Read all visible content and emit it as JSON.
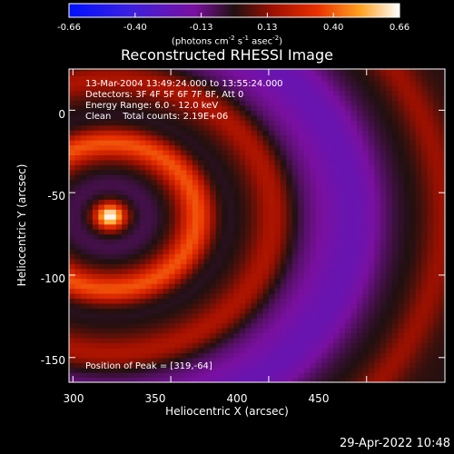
{
  "chart_data": {
    "type": "heatmap",
    "title": "Reconstructed RHESSI Image",
    "xlabel": "Heliocentric X (arcsec)",
    "ylabel": "Heliocentric Y (arcsec)",
    "xlim": [
      298,
      490
    ],
    "ylim": [
      -165,
      25
    ],
    "x_ticks": [
      "300",
      "350",
      "400",
      "450"
    ],
    "y_ticks": [
      "0",
      "-50",
      "-100",
      "-150"
    ],
    "colorbar": {
      "ticks": [
        "-0.66",
        "-0.40",
        "-0.13",
        "0.13",
        "0.40",
        "0.66"
      ],
      "range": [
        -0.66,
        0.66
      ],
      "units_label": "(photons cm",
      "units_parts": [
        "(photons cm",
        "-2",
        " s",
        "-1",
        " asec",
        "-2",
        ")"
      ]
    },
    "annotations": [
      "13-Mar-2004 13:49:24.000 to 13:55:24.000",
      "Detectors: 3F 4F 5F 6F 7F 8F, Att 0",
      "Energy Range: 6.0 - 12.0 keV",
      "Clean    Total counts: 2.19E+06"
    ],
    "peak_label": "Position of Peak = [319,-64]",
    "peak": [
      319,
      -64
    ],
    "colors": {
      "low": "#0000ff",
      "mid_low": "#8000a0",
      "zero": "#202020",
      "mid_high": "#cc2a00",
      "high": "#ffffff"
    }
  },
  "footer": {
    "timestamp": "29-Apr-2022 10:48"
  }
}
